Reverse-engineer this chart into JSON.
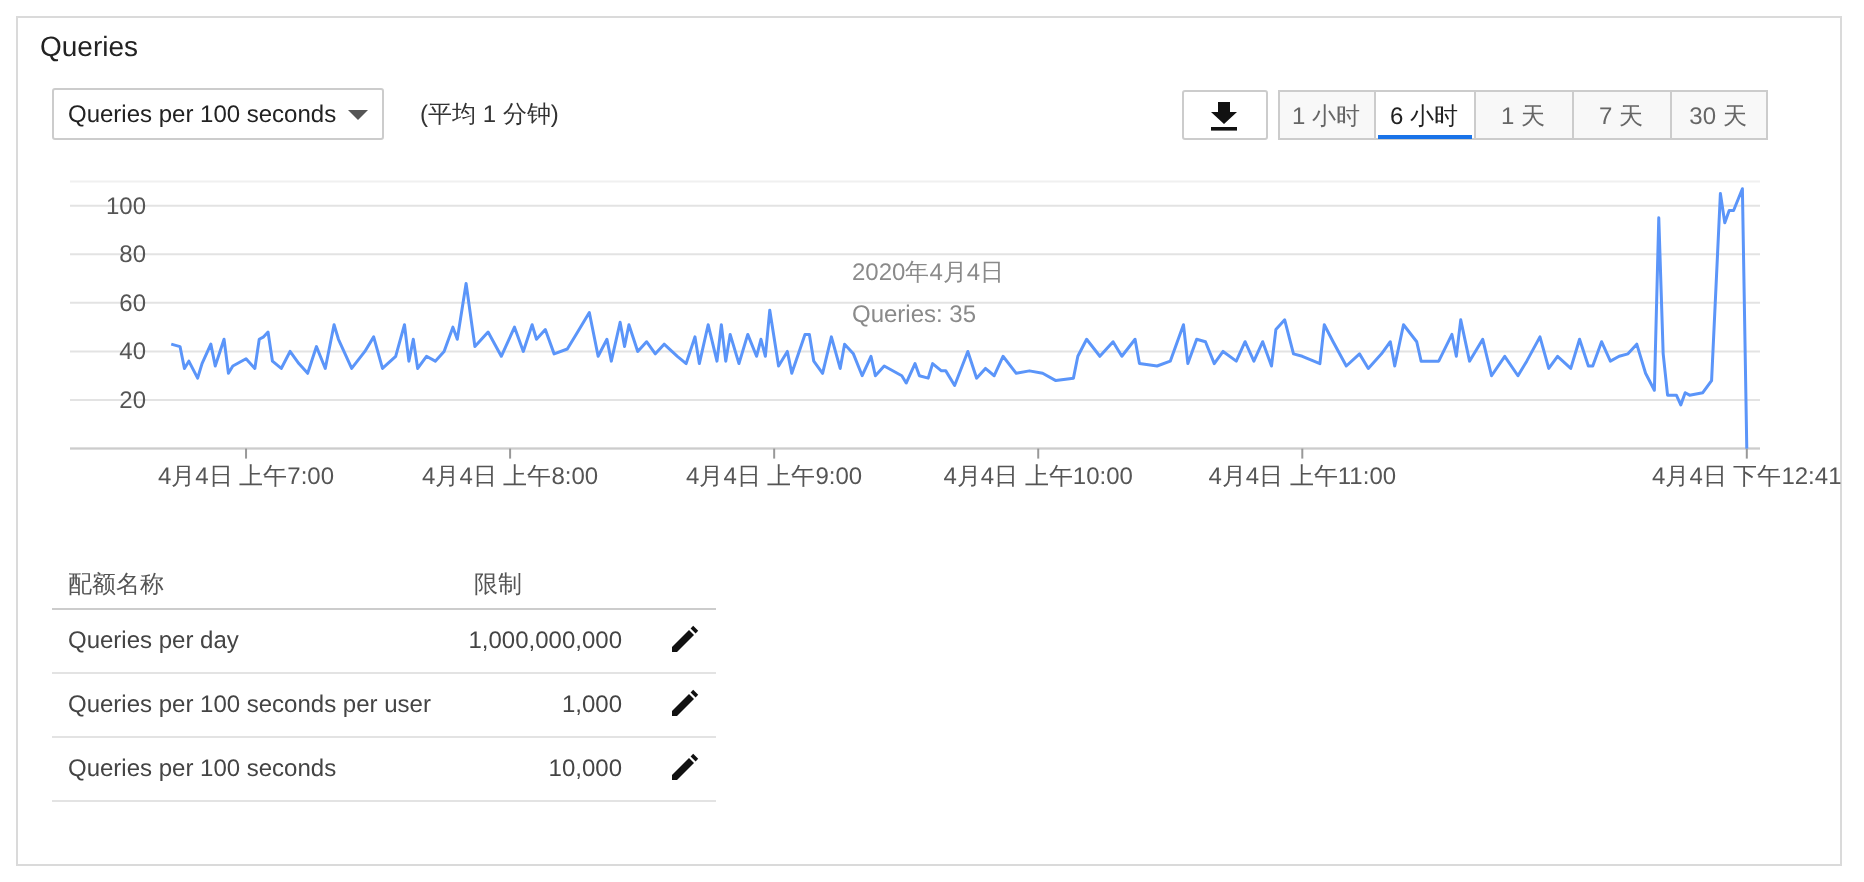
{
  "chart_data": {
    "type": "line",
    "title": "Queries",
    "xlim": [
      "2020-04-04T06:20",
      "2020-04-04T12:44"
    ],
    "ylim": [
      0,
      110
    ],
    "xticks": [
      {
        "value": "2020-04-04T07:00",
        "label": "4月4日 上午7:00"
      },
      {
        "value": "2020-04-04T08:00",
        "label": "4月4日 上午8:00"
      },
      {
        "value": "2020-04-04T09:00",
        "label": "4月4日 上午9:00"
      },
      {
        "value": "2020-04-04T10:00",
        "label": "4月4日 上午10:00"
      },
      {
        "value": "2020-04-04T11:00",
        "label": "4月4日 上午11:00"
      },
      {
        "value": "2020-04-04T12:41",
        "label": "4月4日 下午12:41"
      }
    ],
    "yticks": [
      {
        "value": 0,
        "label": null
      },
      20,
      40,
      60,
      80,
      100
    ],
    "grid": "y",
    "marker": "none",
    "line_style": "solid",
    "annotations": [
      "Queries per 100 seconds",
      "(平均 1 分钟)",
      "1 小时",
      "6 小时",
      "1 天",
      "7 天",
      "30 天",
      "2020年4月4日",
      "Queries: 35",
      "配额名称",
      "限制",
      "Queries per day",
      "1,000,000,000",
      "Queries per 100 seconds per user",
      "1,000",
      "Queries per 100 seconds",
      "10,000"
    ],
    "series": [
      {
        "color": "#5b95f9",
        "x": [
          "2020-04-04T06:43",
          "2020-04-04T06:45",
          "2020-04-04T06:46",
          "2020-04-04T06:47",
          "2020-04-04T06:49",
          "2020-04-04T06:50",
          "2020-04-04T06:52",
          "2020-04-04T06:53",
          "2020-04-04T06:55",
          "2020-04-04T06:56",
          "2020-04-04T06:57",
          "2020-04-04T07:00",
          "2020-04-04T07:02",
          "2020-04-04T07:03",
          "2020-04-04T07:04",
          "2020-04-04T07:05",
          "2020-04-04T07:06",
          "2020-04-04T07:08",
          "2020-04-04T07:10",
          "2020-04-04T07:12",
          "2020-04-04T07:14",
          "2020-04-04T07:16",
          "2020-04-04T07:18",
          "2020-04-04T07:20",
          "2020-04-04T07:21",
          "2020-04-04T07:24",
          "2020-04-04T07:27",
          "2020-04-04T07:29",
          "2020-04-04T07:31",
          "2020-04-04T07:34",
          "2020-04-04T07:36",
          "2020-04-04T07:37",
          "2020-04-04T07:38",
          "2020-04-04T07:39",
          "2020-04-04T07:41",
          "2020-04-04T07:43",
          "2020-04-04T07:45",
          "2020-04-04T07:47",
          "2020-04-04T07:48",
          "2020-04-04T07:50",
          "2020-04-04T07:52",
          "2020-04-04T07:55",
          "2020-04-04T07:58",
          "2020-04-04T08:01",
          "2020-04-04T08:03",
          "2020-04-04T08:05",
          "2020-04-04T08:06",
          "2020-04-04T08:08",
          "2020-04-04T08:10",
          "2020-04-04T08:13",
          "2020-04-04T08:15",
          "2020-04-04T08:18",
          "2020-04-04T08:20",
          "2020-04-04T08:22",
          "2020-04-04T08:23",
          "2020-04-04T08:25",
          "2020-04-04T08:26",
          "2020-04-04T08:27",
          "2020-04-04T08:29",
          "2020-04-04T08:31",
          "2020-04-04T08:33",
          "2020-04-04T08:35",
          "2020-04-04T08:38",
          "2020-04-04T08:40",
          "2020-04-04T08:42",
          "2020-04-04T08:43",
          "2020-04-04T08:45",
          "2020-04-04T08:47",
          "2020-04-04T08:48",
          "2020-04-04T08:49",
          "2020-04-04T08:50",
          "2020-04-04T08:52",
          "2020-04-04T08:54",
          "2020-04-04T08:56",
          "2020-04-04T08:57",
          "2020-04-04T08:58",
          "2020-04-04T08:59",
          "2020-04-04T09:01",
          "2020-04-04T09:03",
          "2020-04-04T09:04",
          "2020-04-04T09:07",
          "2020-04-04T09:08",
          "2020-04-04T09:09",
          "2020-04-04T09:11",
          "2020-04-04T09:13",
          "2020-04-04T09:15",
          "2020-04-04T09:16",
          "2020-04-04T09:18",
          "2020-04-04T09:20",
          "2020-04-04T09:22",
          "2020-04-04T09:23",
          "2020-04-04T09:25",
          "2020-04-04T09:29",
          "2020-04-04T09:30",
          "2020-04-04T09:32",
          "2020-04-04T09:33",
          "2020-04-04T09:35",
          "2020-04-04T09:36",
          "2020-04-04T09:38",
          "2020-04-04T09:39",
          "2020-04-04T09:41",
          "2020-04-04T09:44",
          "2020-04-04T09:46",
          "2020-04-04T09:48",
          "2020-04-04T09:50",
          "2020-04-04T09:52",
          "2020-04-04T09:55",
          "2020-04-04T09:58",
          "2020-04-04T10:01",
          "2020-04-04T10:04",
          "2020-04-04T10:08",
          "2020-04-04T10:09",
          "2020-04-04T10:11",
          "2020-04-04T10:14",
          "2020-04-04T10:17",
          "2020-04-04T10:19",
          "2020-04-04T10:22",
          "2020-04-04T10:23",
          "2020-04-04T10:27",
          "2020-04-04T10:30",
          "2020-04-04T10:33",
          "2020-04-04T10:34",
          "2020-04-04T10:36",
          "2020-04-04T10:38",
          "2020-04-04T10:40",
          "2020-04-04T10:42",
          "2020-04-04T10:45",
          "2020-04-04T10:47",
          "2020-04-04T10:49",
          "2020-04-04T10:51",
          "2020-04-04T10:53",
          "2020-04-04T10:54",
          "2020-04-04T10:56",
          "2020-04-04T10:58",
          "2020-04-04T11:00",
          "2020-04-04T11:04",
          "2020-04-04T11:05",
          "2020-04-04T11:07",
          "2020-04-04T11:10",
          "2020-04-04T11:13",
          "2020-04-04T11:15",
          "2020-04-04T11:18",
          "2020-04-04T11:20",
          "2020-04-04T11:21",
          "2020-04-04T11:23",
          "2020-04-04T11:26",
          "2020-04-04T11:27",
          "2020-04-04T11:31",
          "2020-04-04T11:34",
          "2020-04-04T11:35",
          "2020-04-04T11:36",
          "2020-04-04T11:38",
          "2020-04-04T11:41",
          "2020-04-04T11:43",
          "2020-04-04T11:46",
          "2020-04-04T11:49",
          "2020-04-04T11:51",
          "2020-04-04T11:54",
          "2020-04-04T11:56",
          "2020-04-04T11:58",
          "2020-04-04T12:01",
          "2020-04-04T12:03",
          "2020-04-04T12:05",
          "2020-04-04T12:06",
          "2020-04-04T12:08",
          "2020-04-04T12:10",
          "2020-04-04T12:12",
          "2020-04-04T12:14",
          "2020-04-04T12:16",
          "2020-04-04T12:18",
          "2020-04-04T12:20",
          "2020-04-04T12:21",
          "2020-04-04T12:22",
          "2020-04-04T12:23",
          "2020-04-04T12:25",
          "2020-04-04T12:26",
          "2020-04-04T12:27",
          "2020-04-04T12:28",
          "2020-04-04T12:31",
          "2020-04-04T12:33",
          "2020-04-04T12:35",
          "2020-04-04T12:36",
          "2020-04-04T12:37",
          "2020-04-04T12:38",
          "2020-04-04T12:40",
          "2020-04-04T12:41"
        ],
        "values": [
          43,
          42,
          33,
          36,
          29,
          35,
          43,
          34,
          45,
          31,
          34,
          37,
          33,
          45,
          46,
          48,
          36,
          33,
          40,
          35,
          31,
          42,
          33,
          51,
          45,
          33,
          40,
          46,
          33,
          38,
          51,
          36,
          45,
          33,
          38,
          36,
          40,
          50,
          45,
          68,
          42,
          48,
          38,
          50,
          40,
          51,
          45,
          49,
          39,
          41,
          47,
          56,
          38,
          45,
          36,
          52,
          42,
          51,
          40,
          44,
          39,
          43,
          38,
          35,
          46,
          35,
          51,
          36,
          51,
          36,
          47,
          35,
          47,
          38,
          45,
          38,
          57,
          34,
          40,
          31,
          47,
          47,
          36,
          31,
          46,
          33,
          43,
          39,
          30,
          38,
          30,
          34,
          30,
          27,
          35,
          30,
          29,
          35,
          32,
          32,
          26,
          40,
          29,
          33,
          30,
          38,
          31,
          32,
          31,
          28,
          29,
          38,
          45,
          38,
          44,
          38,
          45,
          35,
          34,
          36,
          51,
          35,
          45,
          44,
          35,
          40,
          36,
          44,
          36,
          44,
          34,
          49,
          53,
          39,
          38,
          35,
          51,
          44,
          34,
          39,
          33,
          39,
          44,
          34,
          51,
          44,
          36,
          36,
          47,
          38,
          53,
          36,
          45,
          30,
          38,
          30,
          36,
          46,
          33,
          38,
          33,
          45,
          34,
          34,
          44,
          36,
          38,
          39,
          43,
          31,
          24,
          95,
          39,
          22,
          22,
          18,
          23,
          22,
          23,
          28,
          105,
          93,
          98,
          98,
          107,
          0
        ]
      }
    ]
  }
}
